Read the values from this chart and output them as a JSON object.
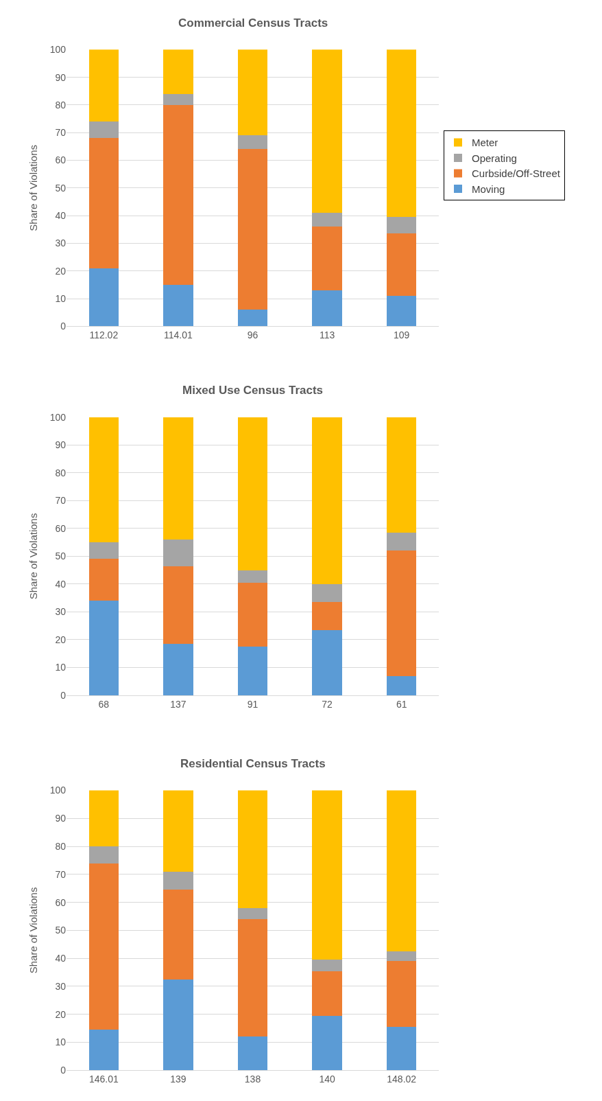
{
  "chart_data": [
    {
      "type": "bar",
      "stacked": true,
      "title": "Commercial Census Tracts",
      "ylabel": "Share of Violations",
      "categories": [
        "112.02",
        "114.01",
        "96",
        "113",
        "109"
      ],
      "ylim": [
        0,
        100
      ],
      "yticks": [
        0,
        10,
        20,
        30,
        40,
        50,
        60,
        70,
        80,
        90,
        100
      ],
      "grid": "y",
      "legend": "right",
      "series": [
        {
          "name": "Moving",
          "color": "#5b9bd5",
          "values": [
            21,
            15,
            6,
            13,
            11
          ]
        },
        {
          "name": "Curbside/Off-Street",
          "color": "#ed7d31",
          "values": [
            47,
            65,
            58,
            23,
            22.5
          ]
        },
        {
          "name": "Operating",
          "color": "#a5a5a5",
          "values": [
            6,
            4,
            5,
            5,
            6
          ]
        },
        {
          "name": "Meter",
          "color": "#ffc000",
          "values": [
            26,
            16,
            31,
            59,
            60.5
          ]
        }
      ]
    },
    {
      "type": "bar",
      "stacked": true,
      "title": "Mixed Use Census Tracts",
      "ylabel": "Share of Violations",
      "categories": [
        "68",
        "137",
        "91",
        "72",
        "61"
      ],
      "ylim": [
        0,
        100
      ],
      "yticks": [
        0,
        10,
        20,
        30,
        40,
        50,
        60,
        70,
        80,
        90,
        100
      ],
      "grid": "y",
      "series": [
        {
          "color": "#5b9bd5",
          "values": [
            34,
            18.5,
            17.5,
            23.5,
            7
          ]
        },
        {
          "color": "#ed7d31",
          "values": [
            15,
            28,
            23,
            10,
            45
          ]
        },
        {
          "color": "#a5a5a5",
          "values": [
            6,
            9.5,
            4.5,
            6.5,
            6.5
          ]
        },
        {
          "color": "#ffc000",
          "values": [
            45,
            44,
            55,
            60,
            41.5
          ]
        }
      ]
    },
    {
      "type": "bar",
      "stacked": true,
      "title": "Residential Census Tracts",
      "ylabel": "Share of Violations",
      "categories": [
        "146.01",
        "139",
        "138",
        "140",
        "148.02"
      ],
      "ylim": [
        0,
        100
      ],
      "yticks": [
        0,
        10,
        20,
        30,
        40,
        50,
        60,
        70,
        80,
        90,
        100
      ],
      "grid": "y",
      "series": [
        {
          "color": "#5b9bd5",
          "values": [
            14.5,
            32.5,
            12,
            19.5,
            15.5
          ]
        },
        {
          "color": "#ed7d31",
          "values": [
            59.5,
            32,
            42,
            16,
            23.5
          ]
        },
        {
          "color": "#a5a5a5",
          "values": [
            6,
            6.5,
            4,
            4,
            3.5
          ]
        },
        {
          "color": "#ffc000",
          "values": [
            20,
            29,
            42,
            60.5,
            57.5
          ]
        }
      ]
    }
  ]
}
